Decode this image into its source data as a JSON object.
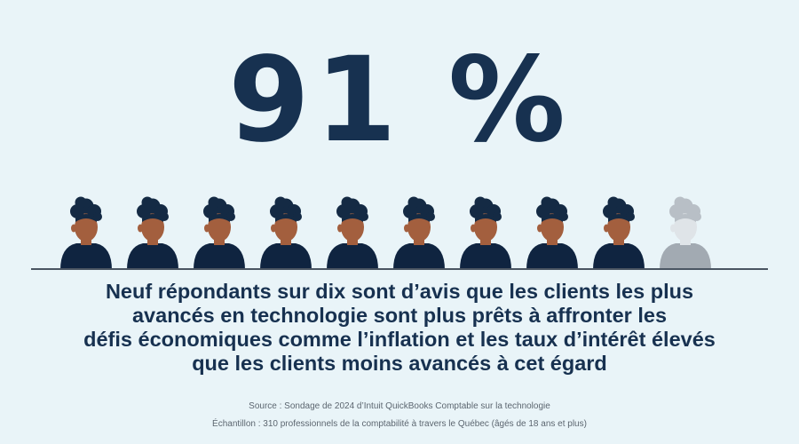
{
  "stat": "91 %",
  "figures": [
    {
      "highlighted": true
    },
    {
      "highlighted": true
    },
    {
      "highlighted": true
    },
    {
      "highlighted": true
    },
    {
      "highlighted": true
    },
    {
      "highlighted": true
    },
    {
      "highlighted": true
    },
    {
      "highlighted": true
    },
    {
      "highlighted": true
    },
    {
      "highlighted": false
    }
  ],
  "colors": {
    "background": "#e9f4f8",
    "text_dark": "#173150",
    "hair": "#142a44",
    "skin": "#a35f3e",
    "shirt": "#0f2440",
    "grey_hair": "#b8bfc6",
    "grey_face": "#dfe4e8",
    "grey_shirt": "#a2aab2"
  },
  "headline_lines": [
    "Neuf répondants sur dix sont d’avis que les clients les plus",
    "avancés en technologie sont plus prêts à affronter les",
    "défis économiques comme l’inflation et les taux d’intérêt élevés",
    "que les clients moins avancés à cet égard"
  ],
  "source": "Source : Sondage de 2024 d’Intuit QuickBooks Comptable sur la technologie",
  "sample": "Échantillon : 310 professionnels de la comptabilité à travers le Québec (âgés de 18 ans et plus)"
}
